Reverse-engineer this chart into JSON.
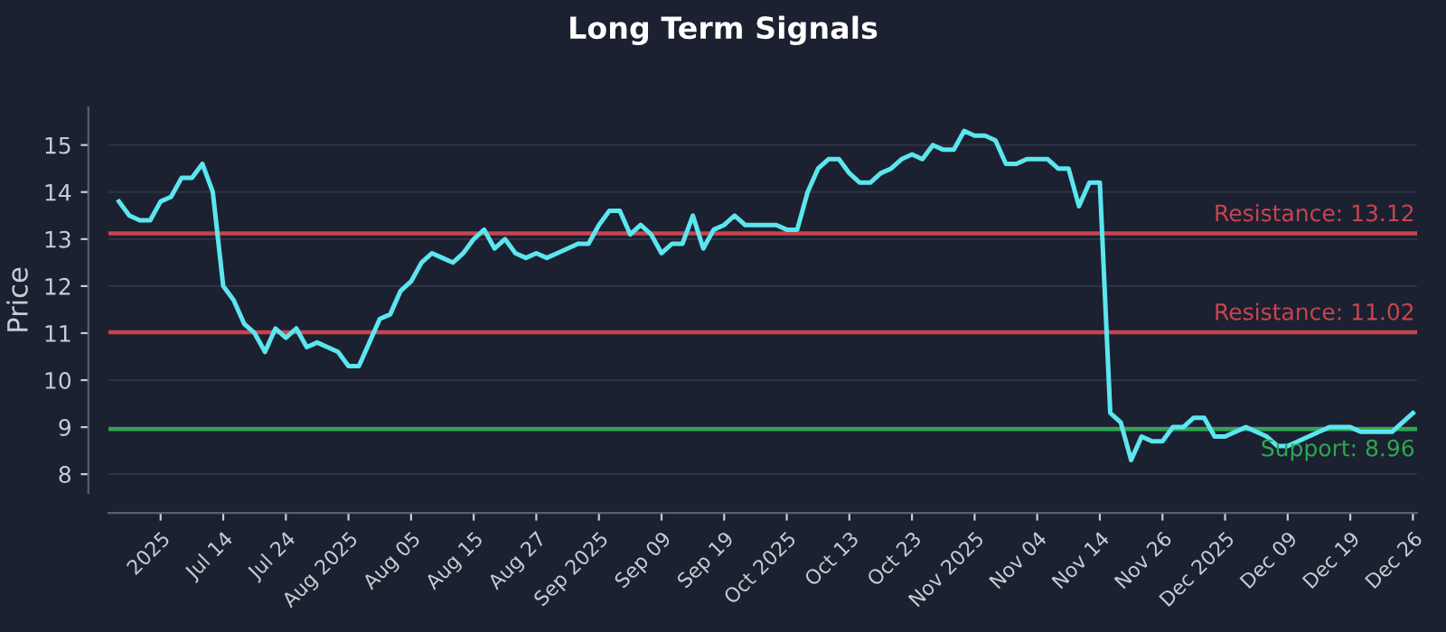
{
  "chart_data": {
    "type": "line",
    "title": "Long Term Signals",
    "ylabel": "Price",
    "categories": [
      null,
      null,
      null,
      null,
      "2025",
      null,
      null,
      null,
      null,
      null,
      "Jul 14",
      null,
      null,
      null,
      null,
      null,
      "Jul 24",
      null,
      null,
      null,
      null,
      null,
      "Aug 2025",
      null,
      null,
      null,
      null,
      null,
      "Aug 05",
      null,
      null,
      null,
      null,
      null,
      "Aug 15",
      null,
      null,
      null,
      null,
      null,
      "Aug 27",
      null,
      null,
      null,
      null,
      null,
      "Sep 2025",
      null,
      null,
      null,
      null,
      null,
      "Sep 09",
      null,
      null,
      null,
      null,
      null,
      "Sep 19",
      null,
      null,
      null,
      null,
      null,
      "Oct 2025",
      null,
      null,
      null,
      null,
      null,
      "Oct 13",
      null,
      null,
      null,
      null,
      null,
      "Oct 23",
      null,
      null,
      null,
      null,
      null,
      "Nov 2025",
      null,
      null,
      null,
      null,
      null,
      "Nov 04",
      null,
      null,
      null,
      null,
      null,
      "Nov 14",
      null,
      null,
      null,
      null,
      null,
      "Nov 26",
      null,
      null,
      null,
      null,
      null,
      "Dec 2025",
      null,
      null,
      null,
      null,
      null,
      "Dec 09",
      null,
      null,
      null,
      null,
      null,
      "Dec 19",
      null,
      null,
      null,
      null,
      null,
      "Dec 26"
    ],
    "series": [
      {
        "color": "#5ce6ef",
        "values": [
          13.8,
          13.5,
          13.4,
          13.4,
          13.8,
          13.9,
          14.3,
          14.3,
          14.6,
          14.0,
          12.0,
          11.7,
          11.2,
          11.0,
          10.6,
          11.1,
          10.9,
          11.1,
          10.7,
          10.8,
          10.7,
          10.6,
          10.3,
          10.3,
          10.8,
          11.3,
          11.4,
          11.9,
          12.1,
          12.5,
          12.7,
          12.6,
          12.5,
          12.7,
          13.0,
          13.2,
          12.8,
          13.0,
          12.7,
          12.6,
          12.7,
          12.6,
          12.7,
          12.8,
          12.9,
          12.9,
          13.3,
          13.6,
          13.6,
          13.1,
          13.3,
          13.1,
          12.7,
          12.9,
          12.9,
          13.5,
          12.8,
          13.2,
          13.3,
          13.5,
          13.3,
          13.3,
          13.3,
          13.3,
          13.2,
          13.2,
          14.0,
          14.5,
          14.7,
          14.7,
          14.4,
          14.2,
          14.2,
          14.4,
          14.5,
          14.7,
          14.8,
          14.7,
          15.0,
          14.9,
          14.9,
          15.3,
          15.2,
          15.2,
          15.1,
          14.6,
          14.6,
          14.7,
          14.7,
          14.7,
          14.5,
          14.5,
          13.7,
          14.2,
          14.2,
          9.3,
          9.1,
          8.3,
          8.8,
          8.7,
          8.7,
          9.0,
          9.0,
          9.2,
          9.2,
          8.8,
          8.8,
          8.9,
          9.0,
          8.9,
          8.8,
          8.6,
          8.6,
          8.7,
          8.8,
          8.9,
          9.0,
          9.0,
          9.0,
          8.9,
          8.9,
          8.9,
          8.9,
          9.1,
          9.3
        ]
      }
    ],
    "ylim": [
      7.6,
      15.8
    ],
    "yticks": [
      8,
      9,
      10,
      11,
      12,
      13,
      14,
      15
    ],
    "grid": "y",
    "ref_lines": [
      {
        "axis": "y",
        "value": 13.12,
        "label": "Resistance: 13.12",
        "color": "#c9444f"
      },
      {
        "axis": "y",
        "value": 11.02,
        "label": "Resistance: 11.02",
        "color": "#c9444f"
      },
      {
        "axis": "y",
        "value": 8.96,
        "label": "Support: 8.96",
        "color": "#2ea84f"
      }
    ]
  }
}
